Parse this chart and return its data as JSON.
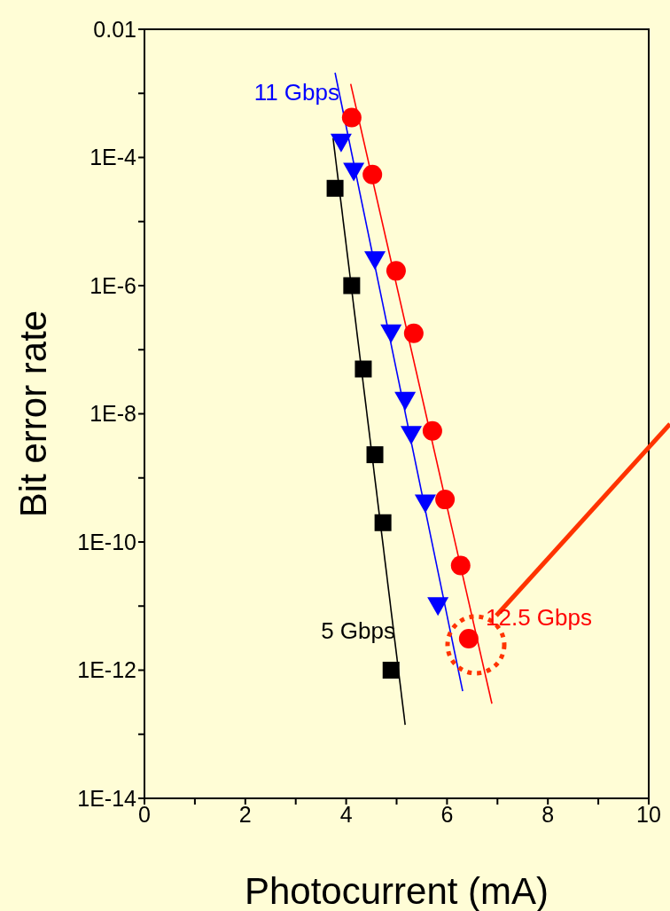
{
  "chart_data": {
    "type": "scatter",
    "xlabel": "Photocurrent (mA)",
    "ylabel": "Bit error rate",
    "xlim": [
      0,
      10
    ],
    "xticks": [
      0,
      {
        "value": 1,
        "label": null
      },
      2,
      {
        "value": 3,
        "label": null
      },
      4,
      {
        "value": 5,
        "label": null
      },
      6,
      {
        "value": 7,
        "label": null
      },
      8,
      {
        "value": 9,
        "label": null
      },
      10
    ],
    "ylim": [
      1e-14,
      0.01
    ],
    "yticks": [
      {
        "value": 1e-14,
        "label": "1E-14"
      },
      {
        "value": 1e-13,
        "label": null
      },
      {
        "value": 1e-12,
        "label": "1E-12"
      },
      {
        "value": 1e-11,
        "label": null
      },
      {
        "value": 1e-10,
        "label": "1E-10"
      },
      {
        "value": 1e-09,
        "label": null
      },
      {
        "value": 1e-08,
        "label": "1E-8"
      },
      {
        "value": 1e-07,
        "label": null
      },
      {
        "value": 1e-06,
        "label": "1E-6"
      },
      {
        "value": 1e-05,
        "label": null
      },
      {
        "value": 0.0001,
        "label": "1E-4"
      },
      {
        "value": 0.001,
        "label": null
      },
      {
        "value": 0.01,
        "label": "0.01"
      }
    ],
    "log": "y",
    "series": [
      {
        "type": "line",
        "marker": "none",
        "color": "#000000",
        "x": [
          3.74,
          5.17
        ],
        "values": [
          0.0002,
          1.4e-13
        ]
      },
      {
        "type": "line",
        "marker": "none",
        "color": "#0000ff",
        "x": [
          3.78,
          6.31
        ],
        "values": [
          0.0021,
          4.7e-13
        ]
      },
      {
        "type": "line",
        "marker": "none",
        "color": "#ff0000",
        "x": [
          4.09,
          6.89
        ],
        "values": [
          0.0014,
          3e-13
        ]
      },
      {
        "marker": "square",
        "color": "#000000",
        "x": [
          3.78,
          4.11,
          4.34,
          4.57,
          4.73,
          4.89
        ],
        "values": [
          3.3e-05,
          1e-06,
          5e-08,
          2.3e-09,
          2e-10,
          1e-12
        ]
      },
      {
        "marker": "triangle",
        "color": "#0000ff",
        "x": [
          3.9,
          4.15,
          4.57,
          4.89,
          5.17,
          5.29,
          5.57,
          5.82
        ],
        "values": [
          0.00017,
          6e-05,
          2.5e-06,
          1.8e-07,
          1.6e-08,
          4.7e-09,
          4e-10,
          1e-11
        ]
      },
      {
        "marker": "circle",
        "color": "#ff0000",
        "x": [
          4.11,
          4.52,
          4.99,
          5.34,
          5.71,
          5.96,
          6.27,
          6.43
        ],
        "values": [
          0.00042,
          5.4e-05,
          1.7e-06,
          1.8e-07,
          5.4e-09,
          4.6e-10,
          4.3e-11,
          3.1e-12
        ]
      }
    ],
    "annotations": [
      "11 Gbps",
      "5 Gbps",
      "12.5 Gbps"
    ]
  }
}
